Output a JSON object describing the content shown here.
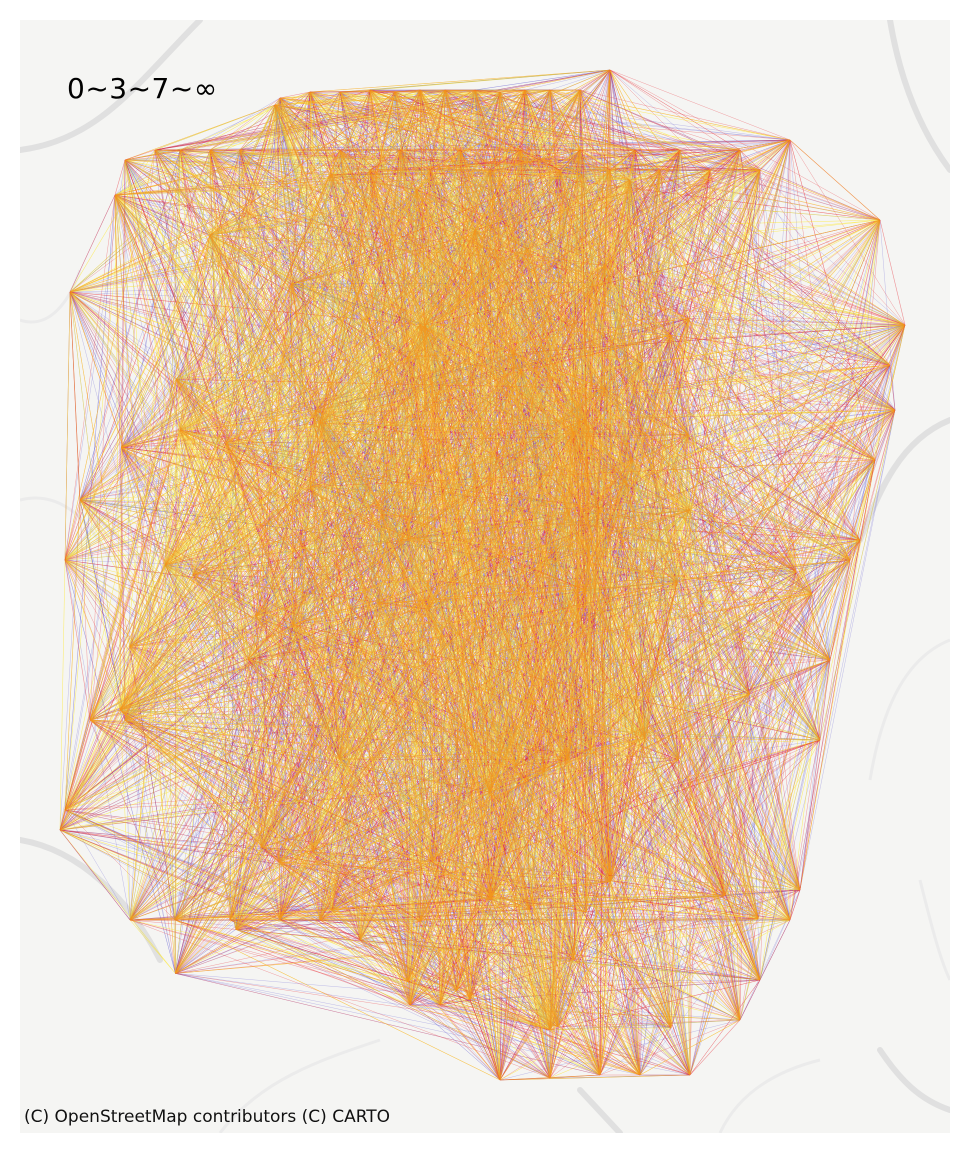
{
  "legend": {
    "label": "0~3~7~∞"
  },
  "attribution": {
    "text": "(C) OpenStreetMap contributors (C) CARTO"
  },
  "colors": {
    "background": "#f5f5f3",
    "road": "#e2e2e2",
    "class_low": "#5a4fd0",
    "class_mid": "#e8323c",
    "class_high": "#ffe600"
  },
  "flow_classes": [
    "0~3",
    "3~7",
    "7~∞"
  ],
  "basemap_style": "CARTO light",
  "icons": [
    "no-icons"
  ]
}
